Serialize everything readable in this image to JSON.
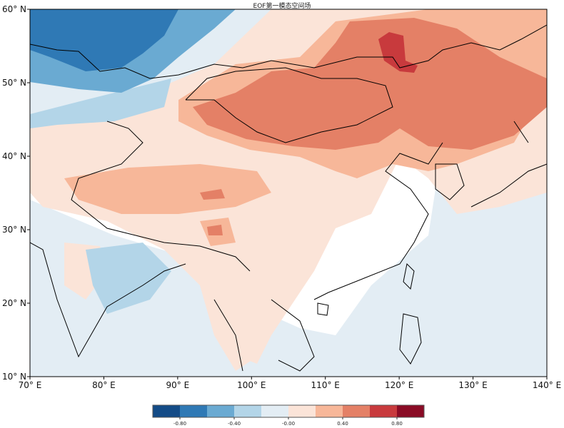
{
  "title": "EOF第一模态空间场",
  "map": {
    "projection": "PlateCarree",
    "lon_range": [
      70,
      140
    ],
    "lat_range": [
      10,
      60
    ],
    "x_ticks": [
      "70° E",
      "80° E",
      "90° E",
      "100° E",
      "110° E",
      "120° E",
      "130° E",
      "140° E"
    ],
    "y_ticks": [
      "60° N",
      "50° N",
      "40° N",
      "30° N",
      "20° N",
      "10° N"
    ],
    "field": "EOF mode 1 spatial pattern (filled contours)"
  },
  "colorbar": {
    "levels": [
      -1.0,
      -0.8,
      -0.6,
      -0.4,
      -0.2,
      0.0,
      0.2,
      0.4,
      0.6,
      0.8,
      1.0
    ],
    "colors": [
      "#134b87",
      "#2f79b5",
      "#6aaad2",
      "#b3d5e8",
      "#e3edf4",
      "#fbe4d8",
      "#f7b799",
      "#e48066",
      "#c83a3d",
      "#8a0b25"
    ],
    "tick_values": [
      -0.8,
      -0.4,
      0.0,
      0.4,
      0.8
    ],
    "tick_labels": [
      "-0.80",
      "-0.40",
      "-0.00",
      "0.40",
      "0.80"
    ]
  }
}
